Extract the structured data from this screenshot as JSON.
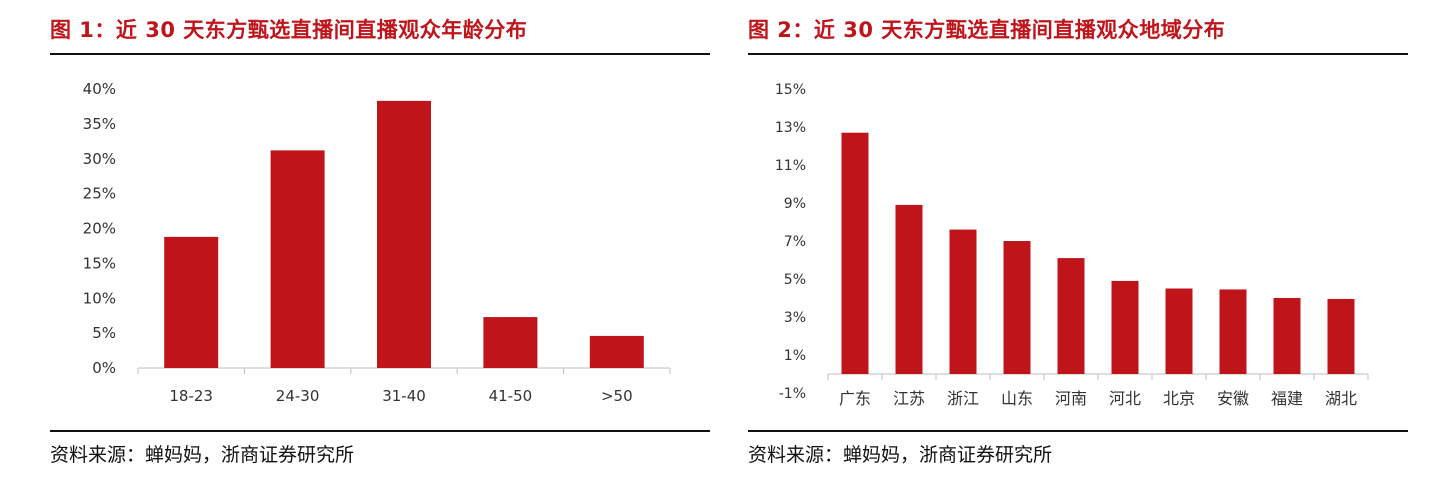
{
  "figures": [
    {
      "title": "图 1：近 30 天东方甄选直播间直播观众年龄分布",
      "source": "资料来源：蝉妈妈，浙商证券研究所"
    },
    {
      "title": "图 2：近 30 天东方甄选直播间直播观众地域分布",
      "source": "资料来源：蝉妈妈，浙商证券研究所"
    }
  ],
  "colors": {
    "bar": "#c0141b",
    "title": "#c0141b",
    "axis": "#bfbfbf"
  },
  "chart_data": [
    {
      "type": "bar",
      "title": "",
      "categories": [
        "18-23",
        "24-30",
        "31-40",
        "41-50",
        ">50"
      ],
      "values": [
        18.8,
        31.2,
        38.3,
        7.3,
        4.6
      ],
      "ylim": [
        0,
        40
      ],
      "yticks": [
        "0%",
        "5%",
        "10%",
        "15%",
        "20%",
        "25%",
        "30%",
        "35%",
        "40%"
      ],
      "xlabel": "",
      "ylabel": "",
      "grid": false
    },
    {
      "type": "bar",
      "title": "",
      "categories": [
        "广东",
        "江苏",
        "浙江",
        "山东",
        "河南",
        "河北",
        "北京",
        "安徽",
        "福建",
        "湖北"
      ],
      "values": [
        12.7,
        8.9,
        7.6,
        7.0,
        6.1,
        4.9,
        4.5,
        4.45,
        4.0,
        3.95
      ],
      "ylim": [
        -1,
        15
      ],
      "yticks": [
        "-1%",
        "1%",
        "3%",
        "5%",
        "7%",
        "9%",
        "11%",
        "13%",
        "15%"
      ],
      "xlabel": "",
      "ylabel": "",
      "grid": false
    }
  ]
}
